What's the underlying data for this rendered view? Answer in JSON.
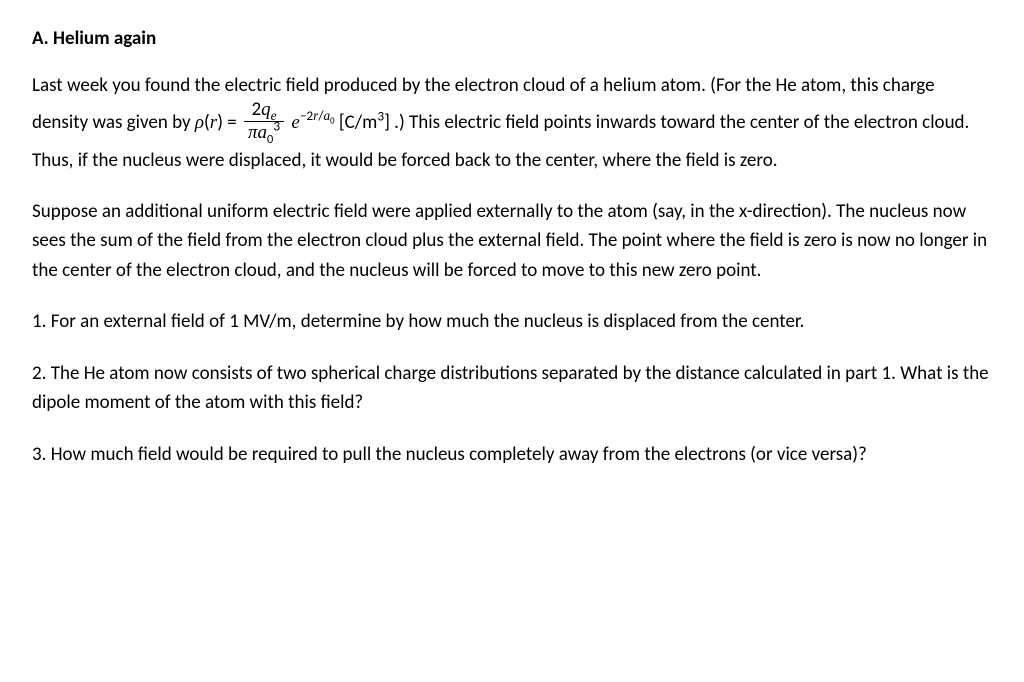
{
  "heading": "A. Helium again",
  "p1a": "Last week you found the electric field produced by the electron cloud of a helium atom. (For the He atom, this charge density was given by ",
  "rho": "ρ",
  "r": "r",
  "eq": " = ",
  "num2": "2",
  "q": "q",
  "esub": "e",
  "pi": "π",
  "a": "a",
  "zero": "0",
  "cube": "3",
  "expE": "e",
  "expMinus": "−2",
  "slash": "/",
  "units": " [C/m",
  "unitsClose": "] .)    This electric field points inwards toward the center of the electron cloud. Thus, if the nucleus were displaced, it would be forced back to the center, where the field is zero.",
  "p2": "Suppose an additional uniform electric field were applied externally to the atom (say, in the x-direction). The nucleus now sees the sum of the field from the electron cloud plus the external field. The point where the field is zero is now no longer in the center of the electron cloud, and the nucleus will be forced to move to this new zero point.",
  "q1": "1. For an external field of 1 MV/m, determine by how much the nucleus is displaced from the center.",
  "q2": "2. The He atom now consists of two spherical charge distributions separated by the distance calculated in part 1. What is the dipole moment of the atom with this field?",
  "q3": "3. How much field would be required to pull the nucleus completely away from the electrons (or vice versa)?"
}
